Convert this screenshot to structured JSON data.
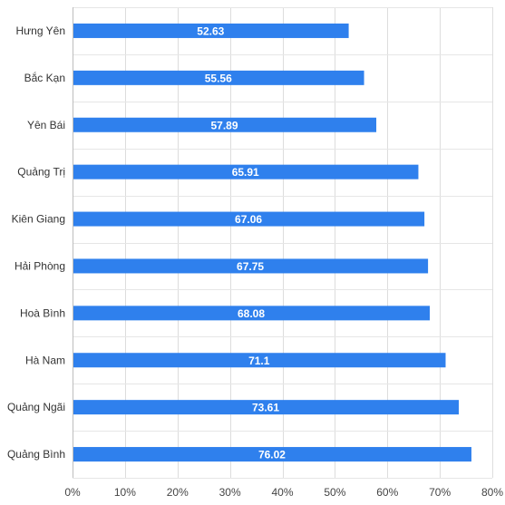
{
  "chart_data": {
    "type": "bar",
    "orientation": "horizontal",
    "categories": [
      "Hưng Yên",
      "Bắc Kạn",
      "Yên Bái",
      "Quảng Trị",
      "Kiên Giang",
      "Hải Phòng",
      "Hoà Bình",
      "Hà Nam",
      "Quảng Ngãi",
      "Quảng Bình"
    ],
    "values": [
      52.63,
      55.56,
      57.89,
      65.91,
      67.06,
      67.75,
      68.08,
      71.1,
      73.61,
      76.02
    ],
    "data_labels": [
      "52.63",
      "55.56",
      "57.89",
      "65.91",
      "67.06",
      "67.75",
      "68.08",
      "71.1",
      "73.61",
      "76.02"
    ],
    "x_ticks": [
      0,
      10,
      20,
      30,
      40,
      50,
      60,
      70,
      80
    ],
    "x_tick_labels": [
      "0%",
      "10%",
      "20%",
      "30%",
      "40%",
      "50%",
      "60%",
      "70%",
      "80%"
    ],
    "xlim": [
      0,
      80
    ],
    "title": "",
    "xlabel": "",
    "ylabel": "",
    "grid": true,
    "legend": "none",
    "bar_color": "#2f80ed"
  }
}
